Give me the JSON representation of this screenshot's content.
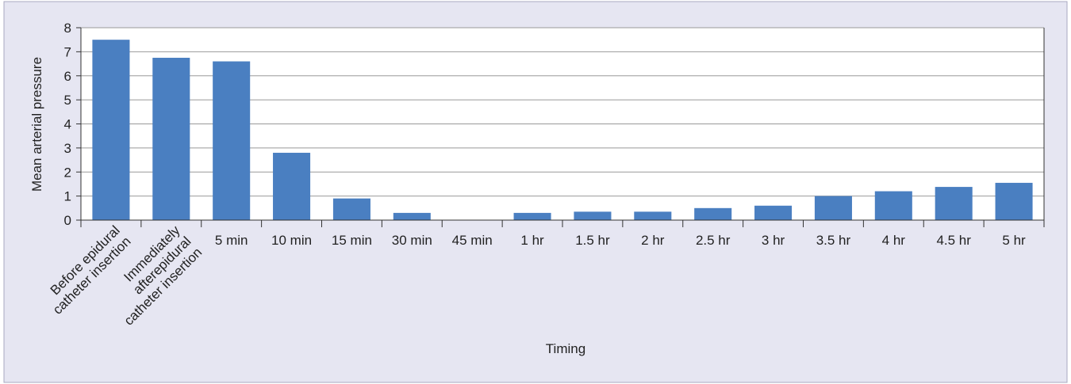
{
  "chart_data": {
    "type": "bar",
    "x_label": "Timing",
    "y_label": "Mean arterial pressure",
    "categories": [
      "Before epidural\ncatheter insertion",
      "Immediately\nafterepidural\ncatheter insertion",
      "5 min",
      "10 min",
      "15 min",
      "30 min",
      "45 min",
      "1 hr",
      "1.5 hr",
      "2 hr",
      "2.5 hr",
      "3 hr",
      "3.5 hr",
      "4 hr",
      "4.5 hr",
      "5 hr"
    ],
    "values": [
      7.5,
      6.75,
      6.6,
      2.8,
      0.9,
      0.3,
      0,
      0.3,
      0.35,
      0.35,
      0.5,
      0.6,
      1.0,
      1.2,
      1.38,
      1.55
    ],
    "color": "#4a7fc1",
    "ylim": [
      0,
      8
    ],
    "yticks": [
      0,
      1,
      2,
      3,
      4,
      5,
      6,
      7,
      8
    ],
    "grid": true
  }
}
